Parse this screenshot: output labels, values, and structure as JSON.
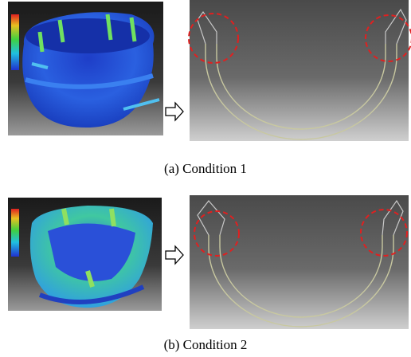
{
  "figure": {
    "panels": [
      {
        "caption": "(a) Condition 1"
      },
      {
        "caption": "(b) Condition 2"
      }
    ]
  }
}
